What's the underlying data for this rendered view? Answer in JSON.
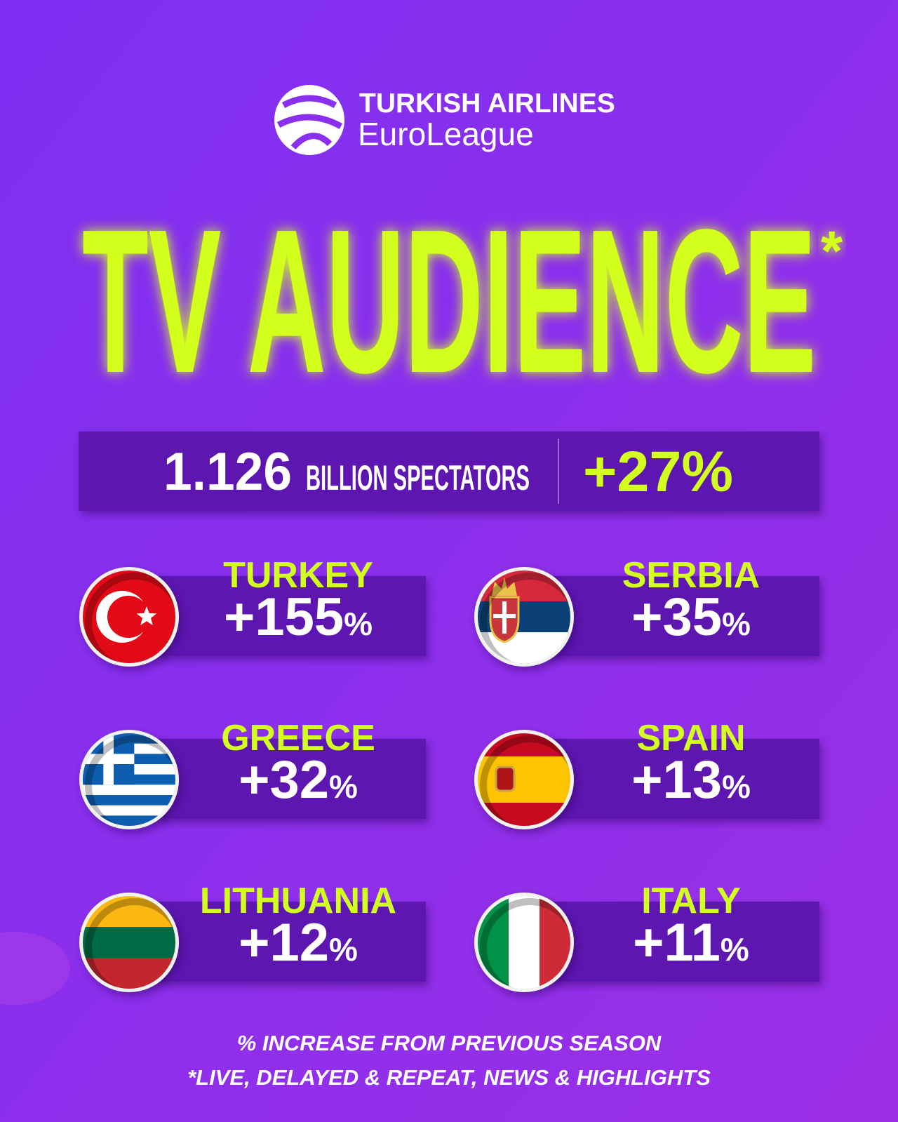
{
  "logo": {
    "line1": "TURKISH AIRLINES",
    "line2": "EuroLeague"
  },
  "title": "TV AUDIENCE",
  "title_mark": "*",
  "summary": {
    "value": "1.126",
    "label": "BILLION SPECTATORS",
    "change": "+27%"
  },
  "countries": [
    {
      "name": "TURKEY",
      "change": "+155",
      "unit": "%"
    },
    {
      "name": "SERBIA",
      "change": "+35",
      "unit": "%"
    },
    {
      "name": "GREECE",
      "change": "+32",
      "unit": "%"
    },
    {
      "name": "SPAIN",
      "change": "+13",
      "unit": "%"
    },
    {
      "name": "LITHUANIA",
      "change": "+12",
      "unit": "%"
    },
    {
      "name": "ITALY",
      "change": "+11",
      "unit": "%"
    }
  ],
  "footnotes": [
    "% INCREASE FROM PREVIOUS SEASON",
    "*LIVE, DELAYED & REPEAT, NEWS & HIGHLIGHTS"
  ]
}
